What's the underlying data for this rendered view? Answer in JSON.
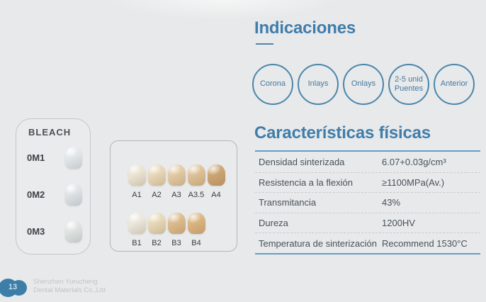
{
  "accent": "#3f7dab",
  "bleach": {
    "title": "BLEACH",
    "shades": [
      {
        "label": "0M1",
        "color": "#e2e6e8"
      },
      {
        "label": "0M2",
        "color": "#dde2e6"
      },
      {
        "label": "0M3",
        "color": "#dfe2df"
      }
    ]
  },
  "vita": {
    "row_a": [
      {
        "label": "A1",
        "color": "#eae3d2"
      },
      {
        "label": "A2",
        "color": "#e7d6b6"
      },
      {
        "label": "A3",
        "color": "#e2c9a3"
      },
      {
        "label": "A3.5",
        "color": "#dec096"
      },
      {
        "label": "A4",
        "color": "#cba471"
      }
    ],
    "row_b": [
      {
        "label": "B1",
        "color": "#eae7dc"
      },
      {
        "label": "B2",
        "color": "#e6d8b7"
      },
      {
        "label": "B3",
        "color": "#dcba8b"
      },
      {
        "label": "B4",
        "color": "#dab480"
      }
    ]
  },
  "indications": {
    "title": "Indicaciones",
    "items": [
      {
        "label": "Corona"
      },
      {
        "label": "Inlays"
      },
      {
        "label": "Onlays"
      },
      {
        "label": "2-5 unid Puentes"
      },
      {
        "label": "Anterior"
      }
    ]
  },
  "physical": {
    "title": "Características físicas",
    "rows": [
      {
        "label": "Densidad sinterizada",
        "value": "6.07+0.03g/cm³"
      },
      {
        "label": "Resistencia a la flexión",
        "value": "≥1100MPa(Av.)"
      },
      {
        "label": "Transmitancia",
        "value": "43%"
      },
      {
        "label": "Dureza",
        "value": "1200HV"
      },
      {
        "label": "Temperatura de sinterización",
        "value": "Recommend 1530°C"
      }
    ]
  },
  "footer": {
    "page_number": "13",
    "company_line1": "Shenzhen Yurucheng",
    "company_line2": "Dental Materials Co.,Ltd"
  }
}
